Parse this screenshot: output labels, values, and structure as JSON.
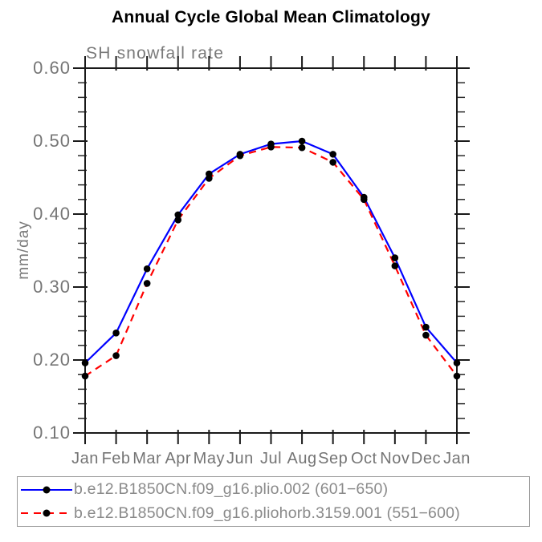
{
  "page": {
    "title": "Annual Cycle Global Mean Climatology",
    "subtitle": "SH snowfall rate",
    "y_axis_title": "mm/day"
  },
  "colors": {
    "series1_line": "#0000ff",
    "series2_line": "#ff0000",
    "marker": "#000000",
    "axis": "#1a1a1a",
    "tick_label_gray": "#757575",
    "subtitle_gray": "#7a7a7a",
    "legend_text_gray": "#8a8a8a",
    "legend_border": "#999999"
  },
  "chart_data": {
    "type": "line",
    "title": "Annual Cycle Global Mean Climatology",
    "subtitle": "SH snowfall rate",
    "xlabel": "",
    "ylabel": "mm/day",
    "x_categories": [
      "Jan",
      "Feb",
      "Mar",
      "Apr",
      "May",
      "Jun",
      "Jul",
      "Aug",
      "Sep",
      "Oct",
      "Nov",
      "Dec",
      "Jan"
    ],
    "ylim": [
      0.1,
      0.6
    ],
    "ytick_values": [
      0.1,
      0.2,
      0.3,
      0.4,
      0.5,
      0.6
    ],
    "ytick_labels": [
      "0.10",
      "0.20",
      "0.30",
      "0.40",
      "0.50",
      "0.60"
    ],
    "minor_tick_step": 0.02,
    "grid": false,
    "legend_position": "bottom-box",
    "series": [
      {
        "name": "b.e12.B1850CN.f09_g16.plio.002 (601−650)",
        "color": "#0000ff",
        "style": "solid",
        "marker": "black-dot",
        "values": [
          0.196,
          0.237,
          0.325,
          0.399,
          0.455,
          0.482,
          0.496,
          0.5,
          0.482,
          0.423,
          0.34,
          0.245,
          0.196
        ]
      },
      {
        "name": "b.e12.B1850CN.f09_g16.pliohorb.3159.001 (551−600)",
        "color": "#ff0000",
        "style": "dashed",
        "marker": "black-dot",
        "values": [
          0.178,
          0.206,
          0.305,
          0.392,
          0.449,
          0.48,
          0.492,
          0.491,
          0.471,
          0.42,
          0.329,
          0.234,
          0.178
        ]
      }
    ]
  }
}
